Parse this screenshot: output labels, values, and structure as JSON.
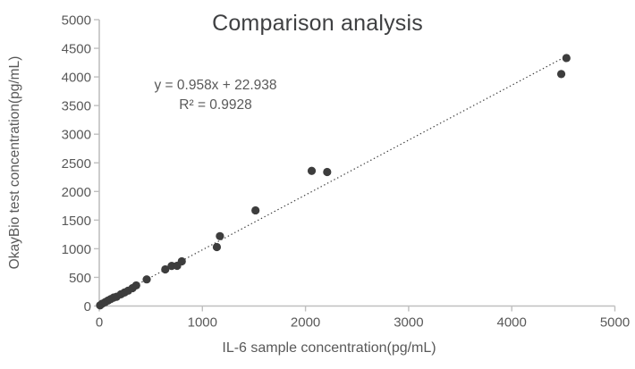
{
  "chart_data": {
    "type": "scatter",
    "title": "Comparison analysis",
    "xlabel": "IL-6 sample concentration(pg/mL)",
    "ylabel": "OkayBio test concentration(pg/mL)",
    "xlim": [
      0,
      5000
    ],
    "ylim": [
      0,
      5000
    ],
    "x_ticks": [
      0,
      1000,
      2000,
      3000,
      4000,
      5000
    ],
    "y_ticks": [
      0,
      500,
      1000,
      1500,
      2000,
      2500,
      3000,
      3500,
      4000,
      4500,
      5000
    ],
    "grid": false,
    "legend": false,
    "points": [
      [
        8,
        12
      ],
      [
        30,
        42
      ],
      [
        58,
        68
      ],
      [
        85,
        96
      ],
      [
        112,
        122
      ],
      [
        140,
        148
      ],
      [
        168,
        162
      ],
      [
        210,
        205
      ],
      [
        245,
        236
      ],
      [
        280,
        268
      ],
      [
        322,
        312
      ],
      [
        358,
        360
      ],
      [
        460,
        465
      ],
      [
        640,
        640
      ],
      [
        702,
        700
      ],
      [
        755,
        702
      ],
      [
        800,
        780
      ],
      [
        1140,
        1030
      ],
      [
        1170,
        1220
      ],
      [
        1515,
        1670
      ],
      [
        2060,
        2360
      ],
      [
        2210,
        2340
      ],
      [
        4480,
        4050
      ],
      [
        4530,
        4330
      ]
    ],
    "trendline": {
      "equation": "y = 0.958x + 22.938",
      "r2_label": "R² = 0.9928",
      "slope": 0.958,
      "intercept": 22.938,
      "x_range": [
        25,
        4530
      ],
      "style": "dotted"
    },
    "colors": {
      "point": "#3d3d3d",
      "trendline": "#3f3f3f",
      "axis": "#bfbfbf",
      "tick_text": "#595959",
      "title_text": "#3f4042"
    }
  }
}
